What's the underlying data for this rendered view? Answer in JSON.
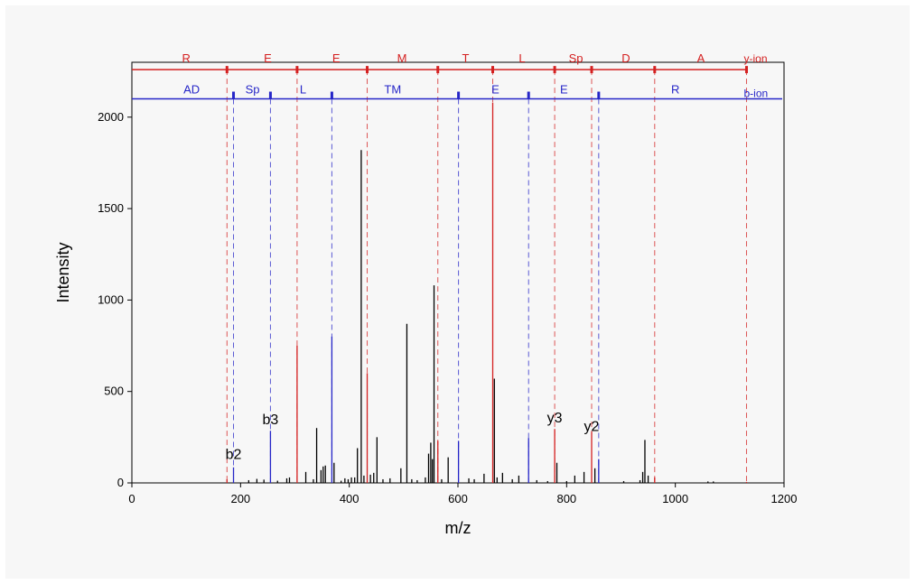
{
  "chart_data": {
    "type": "bar",
    "xlabel": "m/z",
    "ylabel": "Intensity",
    "xlim": [
      0,
      1200
    ],
    "ylim": [
      0,
      2300
    ],
    "xticks": [
      0,
      200,
      400,
      600,
      800,
      1000,
      1200
    ],
    "yticks": [
      0,
      500,
      1000,
      1500,
      2000
    ],
    "colors": {
      "y_ion": "#d42020",
      "b_ion": "#2626c8",
      "peak": "#000000"
    },
    "y_ion_series": {
      "name": "y-ion",
      "level": 2260,
      "boundaries": [
        175,
        304,
        433,
        563,
        664,
        778,
        846,
        962,
        1131
      ],
      "labels": [
        {
          "text": "R",
          "x": 100
        },
        {
          "text": "E",
          "x": 250
        },
        {
          "text": "E",
          "x": 376
        },
        {
          "text": "M",
          "x": 497
        },
        {
          "text": "T",
          "x": 614
        },
        {
          "text": "L",
          "x": 718
        },
        {
          "text": "Sp",
          "x": 817
        },
        {
          "text": "D",
          "x": 909
        },
        {
          "text": "A",
          "x": 1047
        }
      ]
    },
    "b_ion_series": {
      "name": "b-ion",
      "level": 2100,
      "boundaries": [
        187,
        255,
        368,
        601,
        730,
        859
      ],
      "labels": [
        {
          "text": "AD",
          "x": 110
        },
        {
          "text": "Sp",
          "x": 222
        },
        {
          "text": "L",
          "x": 315
        },
        {
          "text": "TM",
          "x": 480
        },
        {
          "text": "E",
          "x": 669
        },
        {
          "text": "E",
          "x": 795
        },
        {
          "text": "R",
          "x": 1000
        }
      ]
    },
    "fragment_labels": [
      {
        "text": "b2",
        "x": 187,
        "y": 100
      },
      {
        "text": "b3",
        "x": 255,
        "y": 290
      },
      {
        "text": "y3",
        "x": 778,
        "y": 300
      },
      {
        "text": "y2",
        "x": 846,
        "y": 255
      }
    ],
    "peaks": [
      {
        "x": 175,
        "y": 20,
        "c": "red"
      },
      {
        "x": 187,
        "y": 85,
        "c": "blue"
      },
      {
        "x": 215,
        "y": 15,
        "c": "black"
      },
      {
        "x": 230,
        "y": 22,
        "c": "black"
      },
      {
        "x": 243,
        "y": 18,
        "c": "black"
      },
      {
        "x": 255,
        "y": 285,
        "c": "blue"
      },
      {
        "x": 268,
        "y": 12,
        "c": "black"
      },
      {
        "x": 285,
        "y": 25,
        "c": "black"
      },
      {
        "x": 290,
        "y": 30,
        "c": "black"
      },
      {
        "x": 304,
        "y": 750,
        "c": "red"
      },
      {
        "x": 320,
        "y": 60,
        "c": "black"
      },
      {
        "x": 334,
        "y": 20,
        "c": "black"
      },
      {
        "x": 340,
        "y": 300,
        "c": "black"
      },
      {
        "x": 348,
        "y": 70,
        "c": "black"
      },
      {
        "x": 352,
        "y": 90,
        "c": "black"
      },
      {
        "x": 356,
        "y": 95,
        "c": "black"
      },
      {
        "x": 368,
        "y": 800,
        "c": "blue"
      },
      {
        "x": 372,
        "y": 110,
        "c": "black"
      },
      {
        "x": 385,
        "y": 12,
        "c": "black"
      },
      {
        "x": 392,
        "y": 25,
        "c": "black"
      },
      {
        "x": 398,
        "y": 20,
        "c": "black"
      },
      {
        "x": 404,
        "y": 30,
        "c": "black"
      },
      {
        "x": 410,
        "y": 30,
        "c": "black"
      },
      {
        "x": 415,
        "y": 190,
        "c": "black"
      },
      {
        "x": 422,
        "y": 1820,
        "c": "black"
      },
      {
        "x": 427,
        "y": 40,
        "c": "black"
      },
      {
        "x": 433,
        "y": 600,
        "c": "red"
      },
      {
        "x": 439,
        "y": 45,
        "c": "black"
      },
      {
        "x": 445,
        "y": 55,
        "c": "black"
      },
      {
        "x": 451,
        "y": 250,
        "c": "black"
      },
      {
        "x": 462,
        "y": 20,
        "c": "black"
      },
      {
        "x": 475,
        "y": 25,
        "c": "black"
      },
      {
        "x": 495,
        "y": 80,
        "c": "black"
      },
      {
        "x": 506,
        "y": 870,
        "c": "black"
      },
      {
        "x": 515,
        "y": 20,
        "c": "black"
      },
      {
        "x": 525,
        "y": 15,
        "c": "black"
      },
      {
        "x": 540,
        "y": 30,
        "c": "black"
      },
      {
        "x": 546,
        "y": 160,
        "c": "black"
      },
      {
        "x": 550,
        "y": 220,
        "c": "black"
      },
      {
        "x": 553,
        "y": 130,
        "c": "black"
      },
      {
        "x": 556,
        "y": 1080,
        "c": "black"
      },
      {
        "x": 563,
        "y": 230,
        "c": "red"
      },
      {
        "x": 570,
        "y": 20,
        "c": "black"
      },
      {
        "x": 582,
        "y": 140,
        "c": "black"
      },
      {
        "x": 601,
        "y": 230,
        "c": "blue"
      },
      {
        "x": 620,
        "y": 25,
        "c": "black"
      },
      {
        "x": 630,
        "y": 20,
        "c": "black"
      },
      {
        "x": 648,
        "y": 50,
        "c": "black"
      },
      {
        "x": 664,
        "y": 2080,
        "c": "red"
      },
      {
        "x": 667,
        "y": 570,
        "c": "black"
      },
      {
        "x": 672,
        "y": 30,
        "c": "black"
      },
      {
        "x": 682,
        "y": 55,
        "c": "black"
      },
      {
        "x": 700,
        "y": 20,
        "c": "black"
      },
      {
        "x": 712,
        "y": 40,
        "c": "black"
      },
      {
        "x": 730,
        "y": 245,
        "c": "blue"
      },
      {
        "x": 745,
        "y": 15,
        "c": "black"
      },
      {
        "x": 765,
        "y": 10,
        "c": "black"
      },
      {
        "x": 778,
        "y": 295,
        "c": "red"
      },
      {
        "x": 782,
        "y": 110,
        "c": "black"
      },
      {
        "x": 800,
        "y": 10,
        "c": "black"
      },
      {
        "x": 815,
        "y": 40,
        "c": "black"
      },
      {
        "x": 832,
        "y": 60,
        "c": "black"
      },
      {
        "x": 846,
        "y": 280,
        "c": "red"
      },
      {
        "x": 852,
        "y": 80,
        "c": "black"
      },
      {
        "x": 859,
        "y": 130,
        "c": "blue"
      },
      {
        "x": 905,
        "y": 10,
        "c": "black"
      },
      {
        "x": 935,
        "y": 15,
        "c": "black"
      },
      {
        "x": 940,
        "y": 60,
        "c": "black"
      },
      {
        "x": 944,
        "y": 235,
        "c": "black"
      },
      {
        "x": 950,
        "y": 40,
        "c": "black"
      },
      {
        "x": 962,
        "y": 30,
        "c": "red"
      },
      {
        "x": 1060,
        "y": 8,
        "c": "black"
      },
      {
        "x": 1070,
        "y": 8,
        "c": "black"
      },
      {
        "x": 1131,
        "y": 5,
        "c": "red"
      }
    ]
  }
}
